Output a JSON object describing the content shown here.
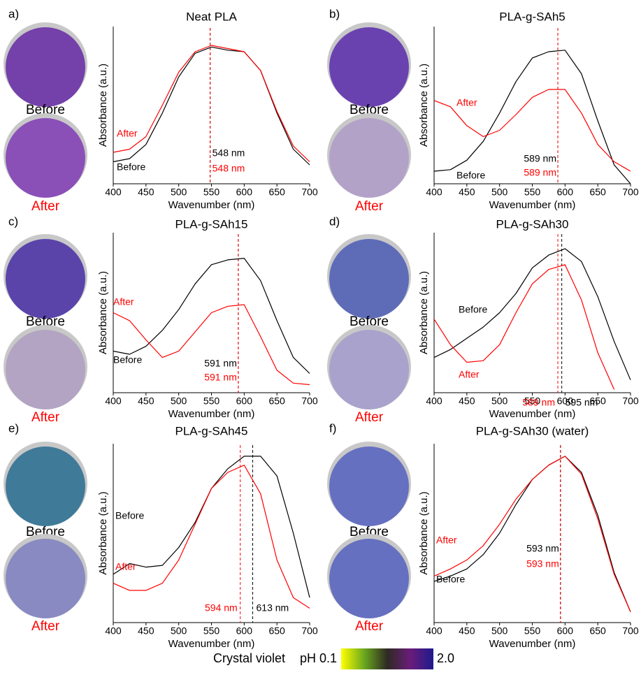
{
  "chart_data": [
    {
      "type": "line",
      "panel": "a)",
      "title": "Neat PLA",
      "x_label": "Wavenumber (nm)",
      "y_label": "Absorbance (a.u.)",
      "x": [
        400,
        425,
        450,
        475,
        500,
        525,
        550,
        575,
        600,
        625,
        650,
        675,
        700
      ],
      "series": [
        {
          "name": "Before",
          "color": "#000000",
          "values": [
            0.14,
            0.16,
            0.25,
            0.45,
            0.68,
            0.83,
            0.87,
            0.85,
            0.84,
            0.72,
            0.45,
            0.22,
            0.12
          ]
        },
        {
          "name": "After",
          "color": "#ff0000",
          "values": [
            0.2,
            0.22,
            0.3,
            0.5,
            0.71,
            0.84,
            0.88,
            0.86,
            0.84,
            0.72,
            0.46,
            0.24,
            0.14
          ]
        }
      ],
      "peaks": [
        {
          "x": 548,
          "label": "548 nm",
          "color": "#000000"
        },
        {
          "x": 548,
          "label": "548 nm",
          "color": "#ff0000"
        }
      ],
      "xlim": [
        400,
        700
      ],
      "xticks": [
        400,
        450,
        500,
        550,
        600,
        650,
        700
      ],
      "ylim": [
        0,
        1
      ],
      "photo_labels": [
        "Before",
        "After"
      ],
      "photo_label_colors": [
        "#000000",
        "#ff0000"
      ],
      "photo_colors": [
        "#7440aa",
        "#8a50b8"
      ]
    },
    {
      "type": "line",
      "panel": "b)",
      "title": "PLA-g-SAh5",
      "x_label": "Wavenumber (nm)",
      "y_label": "Absorbance (a.u.)",
      "x": [
        400,
        425,
        450,
        475,
        500,
        525,
        550,
        575,
        600,
        625,
        650,
        675,
        700
      ],
      "series": [
        {
          "name": "Before",
          "color": "#000000",
          "values": [
            0.08,
            0.09,
            0.15,
            0.27,
            0.45,
            0.65,
            0.8,
            0.84,
            0.85,
            0.7,
            0.4,
            0.12,
            0.0
          ]
        },
        {
          "name": "After",
          "color": "#ff0000",
          "values": [
            0.53,
            0.49,
            0.37,
            0.3,
            0.34,
            0.44,
            0.55,
            0.6,
            0.6,
            0.45,
            0.25,
            0.14,
            0.08
          ]
        }
      ],
      "peaks": [
        {
          "x": 589,
          "label": "589 nm",
          "color": "#000000"
        },
        {
          "x": 589,
          "label": "589 nm",
          "color": "#ff0000"
        }
      ],
      "xlim": [
        400,
        700
      ],
      "xticks": [
        400,
        450,
        500,
        550,
        600,
        650,
        700
      ],
      "ylim": [
        0,
        1
      ],
      "photo_labels": [
        "Before",
        "After"
      ],
      "photo_label_colors": [
        "#000000",
        "#ff0000"
      ],
      "photo_colors": [
        "#6a42b0",
        "#b2a2c8"
      ]
    },
    {
      "type": "line",
      "panel": "c)",
      "title": "PLA-g-SAh15",
      "x_label": "Wavenumber (nm)",
      "y_label": "Absorbance (a.u.)",
      "x": [
        400,
        425,
        450,
        475,
        500,
        525,
        550,
        575,
        600,
        625,
        650,
        675,
        700
      ],
      "series": [
        {
          "name": "Before",
          "color": "#000000",
          "values": [
            0.26,
            0.24,
            0.29,
            0.39,
            0.52,
            0.68,
            0.8,
            0.83,
            0.84,
            0.7,
            0.45,
            0.22,
            0.12
          ]
        },
        {
          "name": "After",
          "color": "#ff0000",
          "values": [
            0.5,
            0.45,
            0.33,
            0.22,
            0.26,
            0.38,
            0.5,
            0.54,
            0.55,
            0.35,
            0.14,
            0.06,
            0.05
          ]
        }
      ],
      "peaks": [
        {
          "x": 591,
          "label": "591 nm",
          "color": "#000000"
        },
        {
          "x": 591,
          "label": "591 nm",
          "color": "#ff0000"
        }
      ],
      "xlim": [
        400,
        700
      ],
      "xticks": [
        400,
        450,
        500,
        550,
        600,
        650,
        700
      ],
      "ylim": [
        0,
        1
      ],
      "photo_labels": [
        "Before",
        "After"
      ],
      "photo_label_colors": [
        "#000000",
        "#ff0000"
      ],
      "photo_colors": [
        "#5a44aa",
        "#b2a4c2"
      ]
    },
    {
      "type": "line",
      "panel": "d)",
      "title": "PLA-g-SAh30",
      "x_label": "Wavenumber (nm)",
      "y_label": "Absorbance (a.u.)",
      "x": [
        400,
        425,
        450,
        475,
        500,
        525,
        550,
        575,
        600,
        625,
        650,
        675,
        700
      ],
      "series": [
        {
          "name": "Before",
          "color": "#000000",
          "values": [
            0.22,
            0.27,
            0.34,
            0.41,
            0.5,
            0.62,
            0.78,
            0.86,
            0.9,
            0.82,
            0.6,
            0.32,
            0.08
          ]
        },
        {
          "name": "After",
          "color": "#ff0000",
          "values": [
            0.46,
            0.3,
            0.19,
            0.2,
            0.3,
            0.5,
            0.68,
            0.77,
            0.8,
            0.58,
            0.25,
            0.02,
            null
          ]
        }
      ],
      "peaks": [
        {
          "x": 595,
          "label": "595 nm",
          "color": "#000000"
        },
        {
          "x": 589,
          "label": "589 nm",
          "color": "#ff0000"
        }
      ],
      "xlim": [
        400,
        700
      ],
      "xticks": [
        400,
        450,
        500,
        550,
        600,
        650,
        700
      ],
      "ylim": [
        0,
        1
      ],
      "photo_labels": [
        "Before",
        "After"
      ],
      "photo_label_colors": [
        "#000000",
        "#ff0000"
      ],
      "photo_colors": [
        "#5e6cb8",
        "#a8a2cc"
      ]
    },
    {
      "type": "line",
      "panel": "e)",
      "title": "PLA-g-SAh45",
      "x_label": "Wavenumber (nm)",
      "y_label": "Absorbance (a.u.)",
      "x": [
        400,
        425,
        450,
        475,
        500,
        525,
        550,
        575,
        600,
        625,
        650,
        675,
        700
      ],
      "series": [
        {
          "name": "Before",
          "color": "#000000",
          "values": [
            0.27,
            0.33,
            0.31,
            0.32,
            0.42,
            0.56,
            0.75,
            0.86,
            0.93,
            0.93,
            0.82,
            0.5,
            0.14
          ]
        },
        {
          "name": "After",
          "color": "#ff0000",
          "values": [
            0.22,
            0.18,
            0.18,
            0.22,
            0.35,
            0.55,
            0.75,
            0.84,
            0.88,
            0.72,
            0.35,
            0.14,
            0.08
          ]
        }
      ],
      "peaks": [
        {
          "x": 613,
          "label": "613 nm",
          "color": "#000000"
        },
        {
          "x": 594,
          "label": "594 nm",
          "color": "#ff0000"
        }
      ],
      "xlim": [
        400,
        700
      ],
      "xticks": [
        400,
        450,
        500,
        550,
        600,
        650,
        700
      ],
      "ylim": [
        0,
        1
      ],
      "photo_labels": [
        "Before",
        "After"
      ],
      "photo_label_colors": [
        "#000000",
        "#ff0000"
      ],
      "photo_colors": [
        "#3f7a98",
        "#8a8ac2"
      ]
    },
    {
      "type": "line",
      "panel": "f)",
      "title": "PLA-g-SAh30 (water)",
      "x_label": "Wavenumber (nm)",
      "y_label": "Absorbance (a.u.)",
      "x": [
        400,
        425,
        450,
        475,
        500,
        525,
        550,
        575,
        600,
        625,
        650,
        675,
        700
      ],
      "series": [
        {
          "name": "Before",
          "color": "#000000",
          "values": [
            0.23,
            0.26,
            0.3,
            0.38,
            0.5,
            0.66,
            0.8,
            0.88,
            0.93,
            0.84,
            0.6,
            0.28,
            0.06
          ]
        },
        {
          "name": "After",
          "color": "#ff0000",
          "values": [
            0.26,
            0.3,
            0.35,
            0.43,
            0.55,
            0.69,
            0.8,
            0.88,
            0.93,
            0.83,
            0.58,
            0.27,
            0.06
          ]
        }
      ],
      "peaks": [
        {
          "x": 593,
          "label": "593 nm",
          "color": "#000000"
        },
        {
          "x": 593,
          "label": "593 nm",
          "color": "#ff0000"
        }
      ],
      "xlim": [
        400,
        700
      ],
      "xticks": [
        400,
        450,
        500,
        550,
        600,
        650,
        700
      ],
      "ylim": [
        0,
        1
      ],
      "photo_labels": [
        "Before",
        "After"
      ],
      "photo_label_colors": [
        "#000000",
        "#ff0000"
      ],
      "photo_colors": [
        "#6670c0",
        "#6670c0"
      ]
    }
  ],
  "colorbar": {
    "label": "Crystal violet",
    "min_label": "pH 0.1",
    "max_label": "2.0",
    "colors": [
      "#ffff00",
      "#6aa81e",
      "#2e2a22",
      "#6a1c7a",
      "#1e1a8c"
    ]
  }
}
